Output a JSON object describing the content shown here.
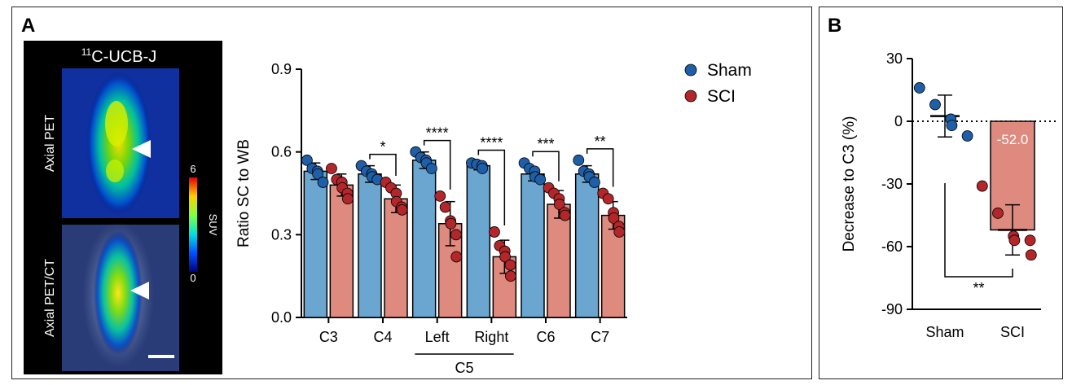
{
  "panel_a": {
    "label": "A",
    "image": {
      "tracer_prefix": "11",
      "tracer_name": "C-UCB-J",
      "row_labels": [
        "Axial PET",
        "Axial PET/CT"
      ],
      "colorbar": {
        "label": "SUV",
        "max": "6",
        "min": "0"
      }
    }
  },
  "panel_b": {
    "label": "B"
  },
  "chart_data": [
    {
      "type": "bar",
      "panel": "A",
      "categories": [
        "C3",
        "C4",
        "Left",
        "Right",
        "C6",
        "C7"
      ],
      "group_label": "C5",
      "ylabel": "Ratio SC to WB",
      "ylim": [
        0,
        0.9
      ],
      "yticks": [
        "0.0",
        "0.3",
        "0.6",
        "0.9"
      ],
      "legend": {
        "position": "top-right",
        "entries": [
          "Sham",
          "SCI"
        ]
      },
      "colors": {
        "Sham": "#6aa6cf",
        "SCI": "#df8a7f",
        "Sham_dot": "#1f5fa8",
        "SCI_dot": "#b3262a"
      },
      "series": [
        {
          "name": "Sham",
          "values": [
            0.53,
            0.52,
            0.57,
            0.55,
            0.52,
            0.52
          ],
          "errors": [
            0.03,
            0.03,
            0.03,
            0.015,
            0.025,
            0.03
          ],
          "points": [
            [
              0.57,
              0.54,
              0.53,
              0.52,
              0.49
            ],
            [
              0.55,
              0.53,
              0.52,
              0.51,
              0.5
            ],
            [
              0.6,
              0.58,
              0.57,
              0.56,
              0.54
            ],
            [
              0.56,
              0.555,
              0.55,
              0.54
            ],
            [
              0.56,
              0.54,
              0.53,
              0.51,
              0.5
            ],
            [
              0.57,
              0.53,
              0.52,
              0.51,
              0.49
            ]
          ]
        },
        {
          "name": "SCI",
          "values": [
            0.48,
            0.43,
            0.34,
            0.22,
            0.41,
            0.37
          ],
          "errors": [
            0.04,
            0.05,
            0.08,
            0.06,
            0.05,
            0.05
          ],
          "points": [
            [
              0.54,
              0.5,
              0.49,
              0.47,
              0.45,
              0.43
            ],
            [
              0.49,
              0.47,
              0.45,
              0.42,
              0.4,
              0.39
            ],
            [
              0.44,
              0.4,
              0.35,
              0.34,
              0.3,
              0.22
            ],
            [
              0.31,
              0.26,
              0.24,
              0.22,
              0.19,
              0.15
            ],
            [
              0.47,
              0.45,
              0.43,
              0.41,
              0.38,
              0.37
            ],
            [
              0.45,
              0.43,
              0.38,
              0.36,
              0.33,
              0.31
            ]
          ]
        }
      ],
      "significance": [
        "",
        "*",
        "****",
        "****",
        "***",
        "**"
      ]
    },
    {
      "type": "bar",
      "panel": "B",
      "categories": [
        "Sham",
        "SCI"
      ],
      "values": [
        2.5,
        -52.0
      ],
      "errors": [
        10,
        12
      ],
      "points": [
        [
          16,
          8,
          1,
          -2,
          -7
        ],
        [
          -31,
          -44,
          -55,
          -57,
          -57,
          -64
        ]
      ],
      "bar_label": "-52.0",
      "ylabel": "Decrease to C3 (%)",
      "ylim": [
        -90,
        30
      ],
      "yticks": [
        "30",
        "0",
        "-30",
        "-60",
        "-90"
      ],
      "significance": "**",
      "colors": {
        "Sham_dot": "#1f5fa8",
        "SCI_bar": "#df8a7f",
        "SCI_dot": "#b3262a"
      }
    }
  ]
}
